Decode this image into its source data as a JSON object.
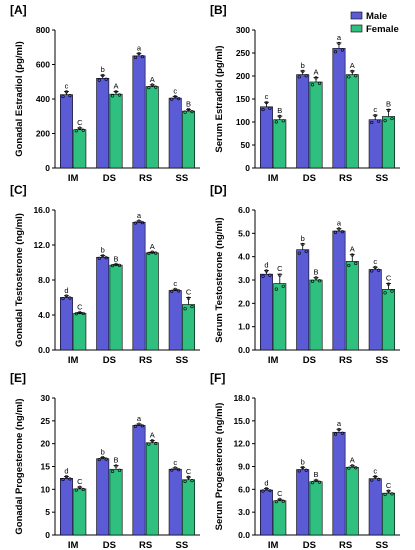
{
  "colors": {
    "male": "#5b5bd6",
    "female": "#2fbf7f",
    "axis": "#000000"
  },
  "chart_data": [
    {
      "panel": "[A]",
      "type": "bar",
      "categories": [
        "IM",
        "DS",
        "RS",
        "SS"
      ],
      "ylabel": "Gonadal Estradiol (pg/ml)",
      "ylim": [
        0,
        800
      ],
      "yticks": [
        "0",
        "200",
        "400",
        "600",
        "800"
      ],
      "tick_values": [
        0,
        200,
        400,
        600,
        800
      ],
      "series": [
        {
          "name": "Male",
          "color": "#5b5bd6",
          "values": [
            425,
            520,
            650,
            405
          ],
          "errors": [
            18,
            18,
            15,
            10
          ],
          "letters": [
            "c",
            "b",
            "a",
            "c"
          ]
        },
        {
          "name": "Female",
          "color": "#2fbf7f",
          "values": [
            222,
            428,
            472,
            330
          ],
          "errors": [
            10,
            16,
            10,
            10
          ],
          "letters": [
            "C",
            "A",
            "A",
            "B"
          ]
        }
      ]
    },
    {
      "panel": "[B]",
      "type": "bar",
      "categories": [
        "IM",
        "DS",
        "RS",
        "SS"
      ],
      "ylabel": "Serum Estradiol (pg/ml)",
      "ylim": [
        0,
        300
      ],
      "yticks": [
        "0",
        "50",
        "100",
        "150",
        "200",
        "250",
        "300"
      ],
      "tick_values": [
        0,
        50,
        100,
        150,
        200,
        250,
        300
      ],
      "series": [
        {
          "name": "Male",
          "color": "#5b5bd6",
          "values": [
            133,
            203,
            260,
            105
          ],
          "errors": [
            10,
            8,
            12,
            10
          ],
          "letters": [
            "c",
            "b",
            "a",
            "c"
          ]
        },
        {
          "name": "Female",
          "color": "#2fbf7f",
          "values": [
            105,
            187,
            203,
            112
          ],
          "errors": [
            8,
            10,
            8,
            15
          ],
          "letters": [
            "B",
            "A",
            "A",
            "B"
          ]
        }
      ]
    },
    {
      "panel": "[C]",
      "type": "bar",
      "categories": [
        "IM",
        "DS",
        "RS",
        "SS"
      ],
      "ylabel": "Gonadal Testosterone (ng/ml)",
      "ylim": [
        0,
        16
      ],
      "yticks": [
        "0.0",
        "4.0",
        "8.0",
        "12.0",
        "16.0"
      ],
      "tick_values": [
        0,
        4,
        8,
        12,
        16
      ],
      "series": [
        {
          "name": "Male",
          "color": "#5b5bd6",
          "values": [
            6.0,
            10.6,
            14.6,
            6.8
          ],
          "errors": [
            0.2,
            0.2,
            0.15,
            0.15
          ],
          "letters": [
            "d",
            "b",
            "a",
            "c"
          ]
        },
        {
          "name": "Female",
          "color": "#2fbf7f",
          "values": [
            4.2,
            9.7,
            11.1,
            5.2
          ],
          "errors": [
            0.1,
            0.1,
            0.1,
            0.8
          ],
          "letters": [
            "C",
            "B",
            "A",
            "C"
          ]
        }
      ]
    },
    {
      "panel": "[D]",
      "type": "bar",
      "categories": [
        "IM",
        "DS",
        "RS",
        "SS"
      ],
      "ylabel": "Serum Testosterone (ng/ml)",
      "ylim": [
        0,
        6
      ],
      "yticks": [
        "0.0",
        "1.0",
        "2.0",
        "3.0",
        "4.0",
        "5.0",
        "6.0"
      ],
      "tick_values": [
        0,
        1,
        2,
        3,
        4,
        5,
        6
      ],
      "series": [
        {
          "name": "Male",
          "color": "#5b5bd6",
          "values": [
            3.25,
            4.3,
            5.1,
            3.45
          ],
          "errors": [
            0.15,
            0.25,
            0.1,
            0.1
          ],
          "letters": [
            "d",
            "b",
            "a",
            "c"
          ]
        },
        {
          "name": "Female",
          "color": "#2fbf7f",
          "values": [
            2.85,
            3.0,
            3.8,
            2.6
          ],
          "errors": [
            0.4,
            0.1,
            0.3,
            0.25
          ],
          "letters": [
            "C",
            "B",
            "A",
            "C"
          ]
        }
      ]
    },
    {
      "panel": "[E]",
      "type": "bar",
      "categories": [
        "IM",
        "DS",
        "RS",
        "SS"
      ],
      "ylabel": "Gonadal Progesterone (ng/ml)",
      "ylim": [
        0,
        30
      ],
      "yticks": [
        "0",
        "5",
        "10",
        "15",
        "20",
        "25",
        "30"
      ],
      "tick_values": [
        0,
        5,
        10,
        15,
        20,
        25,
        30
      ],
      "series": [
        {
          "name": "Male",
          "color": "#5b5bd6",
          "values": [
            12.4,
            16.7,
            24.0,
            14.4
          ],
          "errors": [
            0.4,
            0.3,
            0.3,
            0.3
          ],
          "letters": [
            "d",
            "b",
            "a",
            "c"
          ]
        },
        {
          "name": "Female",
          "color": "#2fbf7f",
          "values": [
            10.1,
            14.4,
            20.2,
            12.1
          ],
          "errors": [
            0.4,
            0.8,
            0.5,
            0.6
          ],
          "letters": [
            "C",
            "B",
            "A",
            "C"
          ]
        }
      ]
    },
    {
      "panel": "[F]",
      "type": "bar",
      "categories": [
        "IM",
        "DS",
        "RS",
        "SS"
      ],
      "ylabel": "Serum Progesterone (ng/ml)",
      "ylim": [
        0,
        18
      ],
      "yticks": [
        "0.0",
        "3.0",
        "6.0",
        "9.0",
        "12.0",
        "15.0",
        "18.0"
      ],
      "tick_values": [
        0,
        3,
        6,
        9,
        12,
        15,
        18
      ],
      "series": [
        {
          "name": "Male",
          "color": "#5b5bd6",
          "values": [
            5.9,
            8.6,
            13.5,
            7.4
          ],
          "errors": [
            0.2,
            0.3,
            0.4,
            0.3
          ],
          "letters": [
            "d",
            "b",
            "a",
            "c"
          ]
        },
        {
          "name": "Female",
          "color": "#2fbf7f",
          "values": [
            4.5,
            7.0,
            8.9,
            5.5
          ],
          "errors": [
            0.2,
            0.2,
            0.2,
            0.3
          ],
          "letters": [
            "C",
            "B",
            "A",
            "C"
          ]
        }
      ]
    }
  ],
  "legend": {
    "items": [
      "Male",
      "Female"
    ],
    "placement": "top-right"
  }
}
